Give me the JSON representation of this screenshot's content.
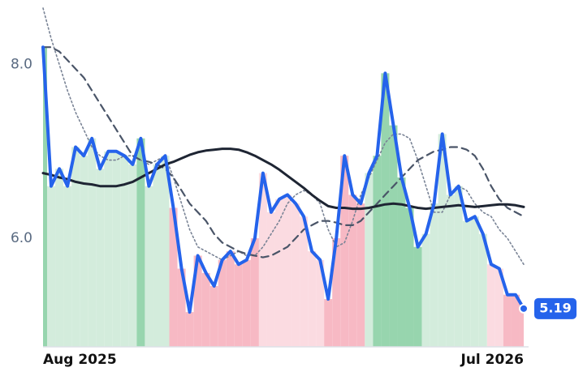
{
  "chart_data": {
    "type": "line",
    "categories": [
      "Aug 2025",
      null,
      null,
      null,
      null,
      null,
      null,
      null,
      null,
      null,
      null,
      null,
      null,
      null,
      null,
      null,
      null,
      null,
      null,
      null,
      null,
      null,
      null,
      null,
      null,
      null,
      null,
      null,
      null,
      null,
      null,
      null,
      null,
      null,
      null,
      null,
      null,
      null,
      null,
      null,
      null,
      null,
      null,
      null,
      null,
      null,
      null,
      null,
      null,
      null,
      null,
      null,
      null,
      null,
      null,
      null,
      null,
      null,
      null,
      "Jul 2026"
    ],
    "ylim": [
      4.75,
      8.65
    ],
    "yticks": [
      {
        "value": 6,
        "label": "6.0"
      },
      {
        "value": 8,
        "label": "8.0"
      }
    ],
    "band_colors": [
      "#97d5ae",
      "#d3ecdc",
      "#d3ecdc",
      "#d3ecdc",
      "#d3ecdc",
      "#d3ecdc",
      "#d3ecdc",
      "#d3ecdc",
      "#d3ecdc",
      "#d3ecdc",
      "#d3ecdc",
      "#d3ecdc",
      "#97d5ae",
      "#d3ecdc",
      "#d3ecdc",
      "#d3ecdc",
      "#f7b9c4",
      "#f7b9c4",
      "#f7b9c4",
      "#f7b9c4",
      "#f7b9c4",
      "#f7b9c4",
      "#f7b9c4",
      "#f7b9c4",
      "#f7b9c4",
      "#f7b9c4",
      "#f7b9c4",
      "#fbdbe1",
      "#fbdbe1",
      "#fbdbe1",
      "#fbdbe1",
      "#fbdbe1",
      "#fbdbe1",
      "#fbdbe1",
      "#fbdbe1",
      "#f7b9c4",
      "#f7b9c4",
      "#f7b9c4",
      "#f7b9c4",
      "#f7b9c4",
      "#d3ecdc",
      "#97d5ae",
      "#97d5ae",
      "#97d5ae",
      "#97d5ae",
      "#97d5ae",
      "#97d5ae",
      "#d3ecdc",
      "#d3ecdc",
      "#d3ecdc",
      "#d3ecdc",
      "#d3ecdc",
      "#d3ecdc",
      "#d3ecdc",
      "#d3ecdc",
      "#fbdbe1",
      "#fbdbe1",
      "#f7b9c4",
      "#f7b9c4",
      "#f7b9c4"
    ],
    "series": [
      {
        "color": "#2563eb",
        "style": "solid",
        "values": [
          8.2,
          6.6,
          6.8,
          6.6,
          7.05,
          6.95,
          7.15,
          6.8,
          7.0,
          7.0,
          6.95,
          6.85,
          7.15,
          6.6,
          6.85,
          6.95,
          6.35,
          5.65,
          5.15,
          5.8,
          5.6,
          5.45,
          5.75,
          5.85,
          5.7,
          5.75,
          6.0,
          6.75,
          6.3,
          6.45,
          6.5,
          6.4,
          6.25,
          5.85,
          5.75,
          5.3,
          6.0,
          6.95,
          6.5,
          6.4,
          6.75,
          6.95,
          7.9,
          7.3,
          6.7,
          6.35,
          5.9,
          6.05,
          6.4,
          7.2,
          6.5,
          6.6,
          6.2,
          6.25,
          6.05,
          5.7,
          5.65,
          5.35,
          5.35,
          5.19
        ]
      },
      {
        "color": "#1e2533",
        "style": "solid",
        "values": [
          6.75,
          6.73,
          6.7,
          6.68,
          6.65,
          6.63,
          6.62,
          6.6,
          6.6,
          6.6,
          6.62,
          6.65,
          6.7,
          6.75,
          6.8,
          6.85,
          6.88,
          6.92,
          6.96,
          6.99,
          7.01,
          7.02,
          7.03,
          7.03,
          7.02,
          6.99,
          6.95,
          6.9,
          6.85,
          6.79,
          6.72,
          6.65,
          6.58,
          6.5,
          6.43,
          6.37,
          6.35,
          6.35,
          6.34,
          6.34,
          6.35,
          6.37,
          6.39,
          6.4,
          6.39,
          6.37,
          6.35,
          6.34,
          6.35,
          6.36,
          6.37,
          6.38,
          6.37,
          6.36,
          6.37,
          6.38,
          6.39,
          6.39,
          6.38,
          6.36
        ]
      },
      {
        "color": "#4a5568",
        "style": "dashed",
        "values": [
          8.2,
          8.2,
          8.15,
          8.05,
          7.95,
          7.85,
          7.7,
          7.55,
          7.4,
          7.25,
          7.1,
          6.95,
          6.9,
          6.88,
          6.85,
          6.8,
          6.7,
          6.55,
          6.4,
          6.3,
          6.2,
          6.05,
          5.95,
          5.9,
          5.85,
          5.82,
          5.8,
          5.78,
          5.8,
          5.85,
          5.9,
          6.0,
          6.1,
          6.15,
          6.2,
          6.2,
          6.18,
          6.15,
          6.15,
          6.2,
          6.3,
          6.4,
          6.5,
          6.6,
          6.7,
          6.8,
          6.9,
          6.95,
          7.0,
          7.02,
          7.05,
          7.05,
          7.02,
          6.95,
          6.8,
          6.6,
          6.45,
          6.35,
          6.3,
          6.25
        ]
      },
      {
        "color": "#7a8496",
        "style": "dotted",
        "values": [
          8.65,
          8.3,
          8.0,
          7.7,
          7.45,
          7.25,
          7.05,
          6.95,
          6.9,
          6.9,
          6.95,
          6.95,
          6.9,
          6.85,
          6.9,
          6.95,
          6.7,
          6.4,
          6.1,
          5.9,
          5.85,
          5.8,
          5.75,
          5.8,
          5.85,
          5.8,
          5.8,
          5.9,
          6.05,
          6.2,
          6.4,
          6.5,
          6.55,
          6.5,
          6.4,
          6.1,
          5.9,
          5.95,
          6.2,
          6.5,
          6.7,
          6.9,
          7.1,
          7.2,
          7.2,
          7.15,
          6.9,
          6.6,
          6.3,
          6.3,
          6.5,
          6.6,
          6.55,
          6.4,
          6.3,
          6.25,
          6.1,
          6.0,
          5.85,
          5.7
        ]
      }
    ]
  }
}
